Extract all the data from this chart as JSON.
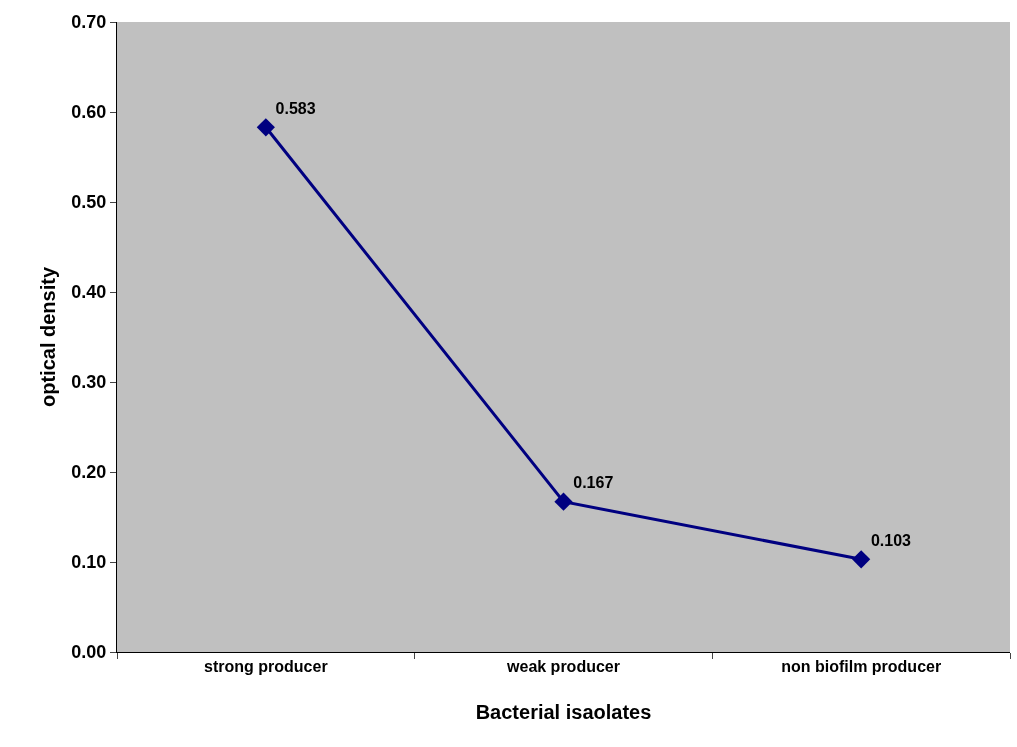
{
  "chart_data": {
    "type": "line",
    "xlabel": "Bacterial isaolates",
    "ylabel": "optical density",
    "categories": [
      "strong producer",
      "weak producer",
      "non biofilm producer"
    ],
    "series": [
      {
        "color": "#000080",
        "values": [
          0.583,
          0.167,
          0.103
        ]
      }
    ],
    "ylim": [
      0,
      0.7
    ],
    "yticks": [
      {
        "value": 0,
        "label": "0.00"
      },
      {
        "value": 0.1,
        "label": "0.10"
      },
      {
        "value": 0.2,
        "label": "0.20"
      },
      {
        "value": 0.3,
        "label": "0.30"
      },
      {
        "value": 0.4,
        "label": "0.40"
      },
      {
        "value": 0.5,
        "label": "0.50"
      },
      {
        "value": 0.6,
        "label": "0.60"
      },
      {
        "value": 0.7,
        "label": "0.70"
      }
    ],
    "data_labels": true,
    "grid": false,
    "marker": "diamond",
    "line_style": "solid"
  }
}
